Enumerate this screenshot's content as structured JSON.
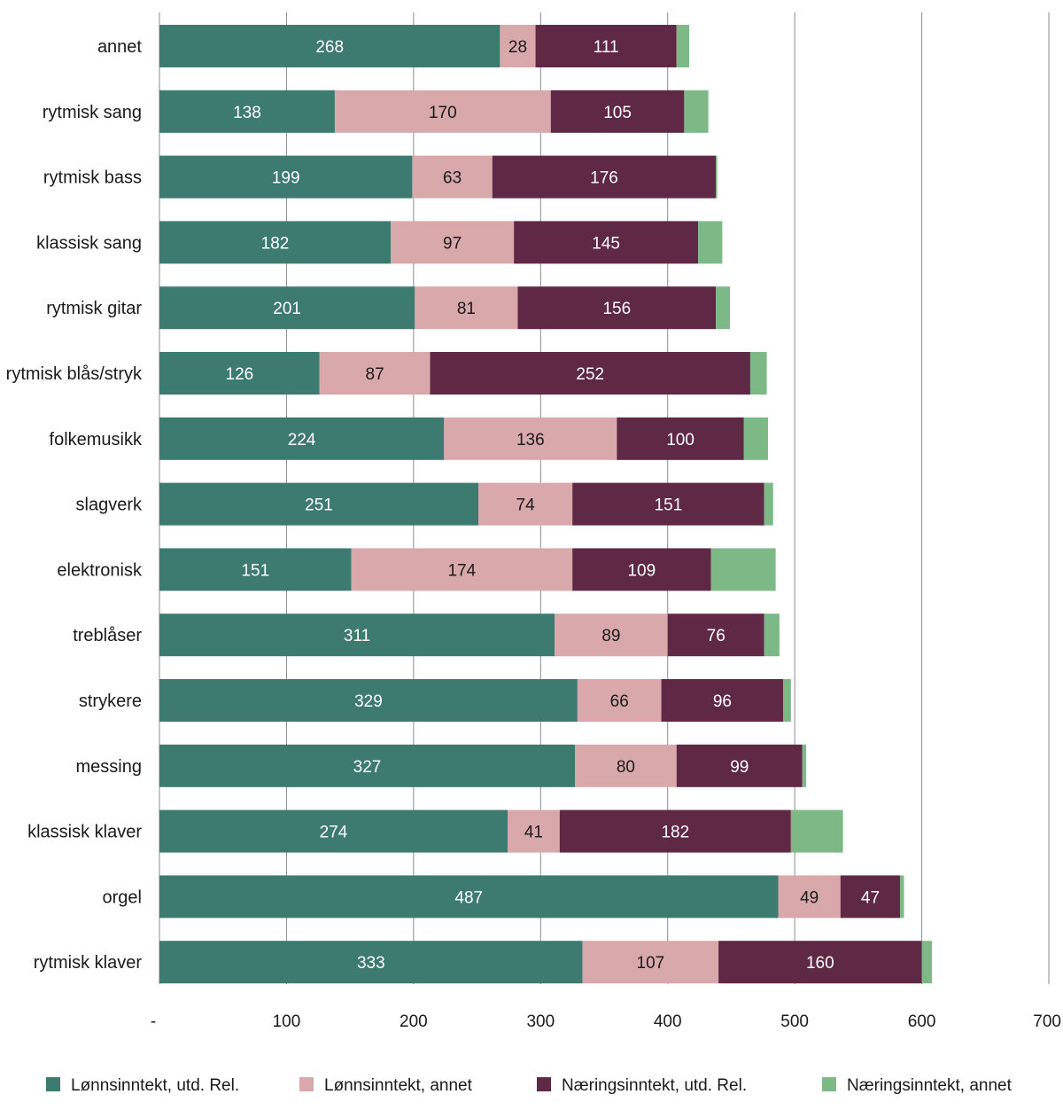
{
  "chart_data": {
    "type": "bar",
    "orientation": "horizontal",
    "stacked": true,
    "title": "",
    "xlabel": "",
    "ylabel": "",
    "xlim": [
      0,
      700
    ],
    "xticks": [
      0,
      100,
      200,
      300,
      400,
      500,
      600,
      700
    ],
    "xtick_labels": [
      "-",
      "100",
      "200",
      "300",
      "400",
      "500",
      "600",
      "700"
    ],
    "grid": "vertical",
    "legend_position": "bottom",
    "categories": [
      "annet",
      "rytmisk sang",
      "rytmisk bass",
      "klassisk sang",
      "rytmisk gitar",
      "rytmisk blås/stryk",
      "folkemusikk",
      "slagverk",
      "elektronisk",
      "treblåser",
      "strykere",
      "messing",
      "klassisk klaver",
      "orgel",
      "rytmisk klaver"
    ],
    "series": [
      {
        "name": "Lønnsinntekt, utd. Rel.",
        "color": "#3d7b70",
        "label_color": "#ffffff",
        "values": [
          268,
          138,
          199,
          182,
          201,
          126,
          224,
          251,
          151,
          311,
          329,
          327,
          274,
          487,
          333
        ]
      },
      {
        "name": "Lønnsinntekt, annet",
        "color": "#d9a8ab",
        "label_color": "#1a1a1a",
        "values": [
          28,
          170,
          63,
          97,
          81,
          87,
          136,
          74,
          174,
          89,
          66,
          80,
          41,
          49,
          107
        ]
      },
      {
        "name": "Næringsinntekt, utd. Rel.",
        "color": "#5f2845",
        "label_color": "#ffffff",
        "values": [
          111,
          105,
          176,
          145,
          156,
          252,
          100,
          151,
          109,
          76,
          96,
          99,
          182,
          47,
          160
        ]
      },
      {
        "name": "Næringsinntekt, annet",
        "color": "#7db986",
        "label_color": "#1a1a1a",
        "show_labels": false,
        "values": [
          10,
          19,
          1,
          19,
          11,
          13,
          19,
          7,
          51,
          12,
          6,
          3,
          41,
          3,
          8
        ]
      }
    ]
  }
}
